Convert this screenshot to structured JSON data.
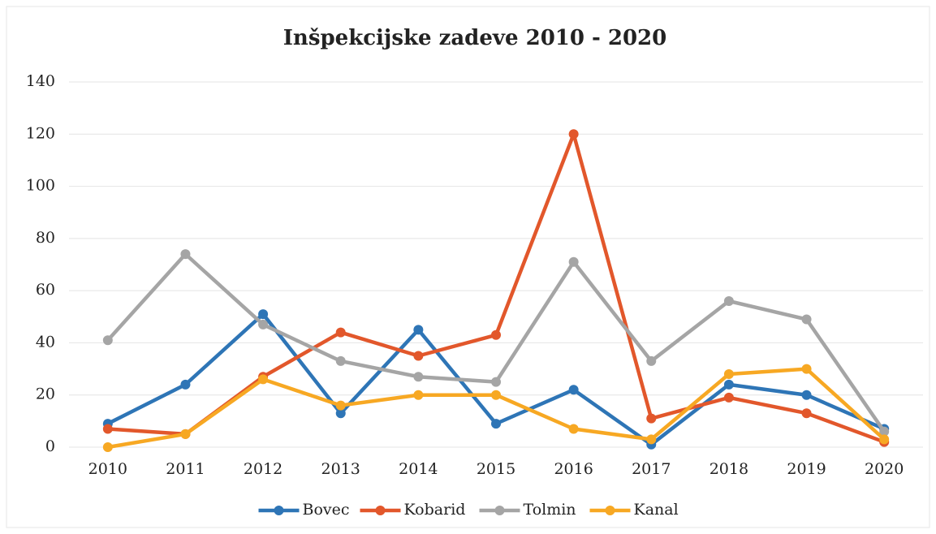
{
  "chart_data": {
    "type": "line",
    "title": "Inšpekcijske zadeve 2010 - 2020",
    "categories": [
      "2010",
      "2011",
      "2012",
      "2013",
      "2014",
      "2015",
      "2016",
      "2017",
      "2018",
      "2019",
      "2020"
    ],
    "series": [
      {
        "name": "Bovec",
        "color": "#2e75b6",
        "values": [
          9,
          24,
          51,
          13,
          45,
          9,
          22,
          1,
          24,
          20,
          7
        ]
      },
      {
        "name": "Kobarid",
        "color": "#e2572b",
        "values": [
          7,
          5,
          27,
          44,
          35,
          43,
          120,
          11,
          19,
          13,
          2
        ]
      },
      {
        "name": "Tolmin",
        "color": "#a5a5a5",
        "values": [
          41,
          74,
          47,
          33,
          27,
          25,
          71,
          33,
          56,
          49,
          6
        ]
      },
      {
        "name": "Kanal",
        "color": "#f7a823",
        "values": [
          0,
          5,
          26,
          16,
          20,
          20,
          7,
          3,
          28,
          30,
          3
        ]
      }
    ],
    "ylim": [
      0,
      140
    ],
    "yticks": [
      0,
      20,
      40,
      60,
      80,
      100,
      120,
      140
    ],
    "grid": true,
    "legend": "bottom"
  }
}
